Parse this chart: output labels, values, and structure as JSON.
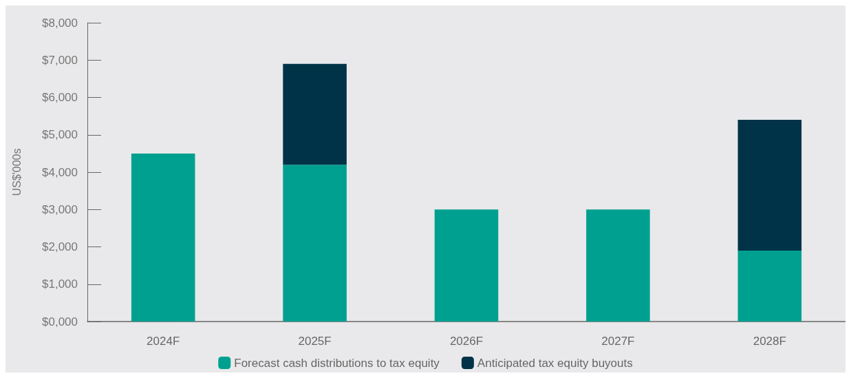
{
  "chart_data": {
    "type": "bar",
    "stacked": true,
    "ylabel": "US$'000s",
    "categories": [
      "2024F",
      "2025F",
      "2026F",
      "2027F",
      "2028F"
    ],
    "series": [
      {
        "name": "Forecast cash distributions to tax equity",
        "color": "#00a090",
        "values": [
          4500,
          4200,
          3000,
          3000,
          1900
        ]
      },
      {
        "name": "Anticipated tax equity buyouts",
        "color": "#003347",
        "values": [
          null,
          2700,
          null,
          null,
          3500
        ]
      }
    ],
    "ylim": [
      0,
      8000
    ],
    "yticks": [
      {
        "value": 0,
        "label": "$0,000"
      },
      {
        "value": 1000,
        "label": "$1,000"
      },
      {
        "value": 2000,
        "label": "$2,000"
      },
      {
        "value": 3000,
        "label": "$3,000"
      },
      {
        "value": 4000,
        "label": "$4,000"
      },
      {
        "value": 5000,
        "label": "$5,000"
      },
      {
        "value": 6000,
        "label": "$6,000"
      },
      {
        "value": 7000,
        "label": "$7,000"
      },
      {
        "value": 8000,
        "label": "$8,000"
      }
    ],
    "grid": false,
    "legend": "bottom"
  }
}
